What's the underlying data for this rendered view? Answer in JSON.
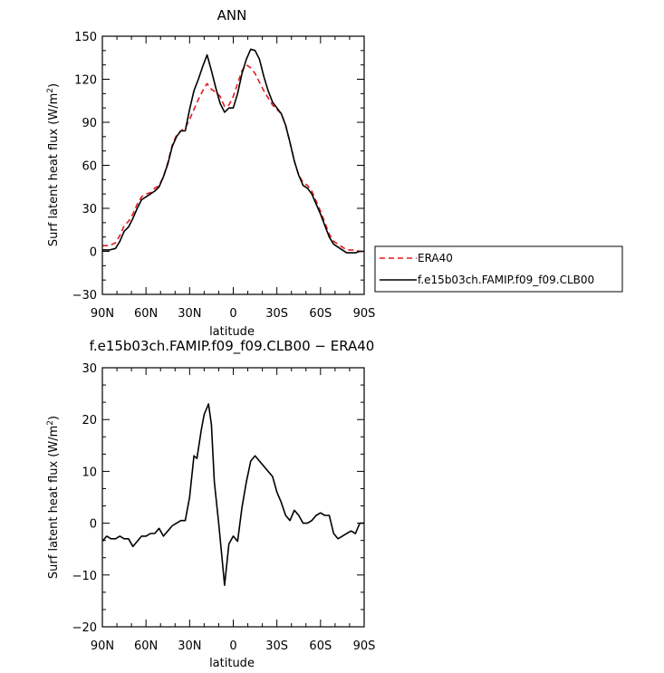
{
  "chart_data": [
    {
      "type": "line",
      "title": "ANN",
      "xlabel": "latitude",
      "ylabel": "Surf latent heat flux (W/m²)",
      "ylabel_parts": {
        "main": "Surf latent heat flux (W/m",
        "sup": "2",
        "close": ")"
      },
      "xlim": [
        90,
        -90
      ],
      "ylim": [
        -30,
        150
      ],
      "x_ticks": [
        90,
        60,
        30,
        0,
        -30,
        -60,
        -90
      ],
      "x_tick_labels": [
        "90N",
        "60N",
        "30N",
        "0",
        "30S",
        "60S",
        "90S"
      ],
      "y_ticks": [
        -30,
        0,
        30,
        60,
        90,
        120,
        150
      ],
      "y_tick_labels": [
        "−30",
        "0",
        "30",
        "60",
        "90",
        "120",
        "150"
      ],
      "legend": "right",
      "series": [
        {
          "name": "ERA40",
          "color": "#e41a1c",
          "dash": "dashed",
          "x": [
            90,
            85,
            81,
            78,
            75,
            72,
            69,
            66,
            63,
            60,
            57,
            54,
            51,
            48,
            45,
            42,
            39,
            36,
            33,
            30,
            27,
            24,
            21,
            18,
            15,
            12,
            9,
            6,
            3,
            0,
            -3,
            -6,
            -9,
            -12,
            -15,
            -18,
            -21,
            -24,
            -27,
            -30,
            -33,
            -36,
            -39,
            -42,
            -45,
            -48,
            -51,
            -54,
            -57,
            -60,
            -63,
            -66,
            -69,
            -72,
            -75,
            -78,
            -81,
            -84,
            -87,
            -90
          ],
          "y": [
            4,
            4,
            6,
            11,
            18,
            21,
            26,
            33,
            38,
            40,
            41,
            44,
            46,
            52,
            62,
            74,
            81,
            84,
            86,
            92,
            99,
            106,
            112,
            117,
            113,
            111,
            108,
            101,
            102,
            108,
            117,
            126,
            130,
            128,
            124,
            118,
            112,
            107,
            102,
            99,
            96,
            88,
            76,
            63,
            53,
            48,
            46,
            42,
            35,
            28,
            20,
            12,
            7,
            5,
            3,
            1,
            1,
            1,
            0,
            0
          ]
        },
        {
          "name": "f.e15b03ch.FAMIP.f09_f09.CLB00",
          "color": "#000000",
          "dash": "solid",
          "x": [
            90,
            85,
            81,
            78,
            75,
            72,
            69,
            66,
            63,
            60,
            57,
            54,
            51,
            48,
            45,
            42,
            39,
            36,
            33,
            30,
            27,
            24,
            21,
            18,
            15,
            12,
            9,
            6,
            3,
            0,
            -3,
            -6,
            -9,
            -12,
            -15,
            -18,
            -21,
            -24,
            -27,
            -30,
            -33,
            -36,
            -39,
            -42,
            -45,
            -48,
            -51,
            -54,
            -57,
            -60,
            -63,
            -66,
            -69,
            -72,
            -75,
            -78,
            -81,
            -84,
            -87,
            -90
          ],
          "y": [
            1,
            1,
            2,
            7,
            14,
            17,
            23,
            30,
            36,
            38,
            40,
            42,
            45,
            52,
            61,
            73,
            80,
            84,
            84,
            99,
            112,
            120,
            129,
            137,
            126,
            114,
            103,
            97,
            100,
            100,
            110,
            124,
            134,
            141,
            140,
            134,
            122,
            112,
            104,
            100,
            96,
            88,
            76,
            63,
            53,
            46,
            44,
            40,
            33,
            26,
            18,
            10,
            5,
            3,
            1,
            -1,
            -1,
            -1,
            0,
            0
          ]
        }
      ]
    },
    {
      "type": "line",
      "title": "f.e15b03ch.FAMIP.f09_f09.CLB00 − ERA40",
      "xlabel": "latitude",
      "ylabel": "Surf latent heat flux (W/m²)",
      "ylabel_parts": {
        "main": "Surf latent heat flux (W/m",
        "sup": "2",
        "close": ")"
      },
      "xlim": [
        90,
        -90
      ],
      "ylim": [
        -20,
        30
      ],
      "x_ticks": [
        90,
        60,
        30,
        0,
        -30,
        -60,
        -90
      ],
      "x_tick_labels": [
        "90N",
        "60N",
        "30N",
        "0",
        "30S",
        "60S",
        "90S"
      ],
      "y_ticks": [
        -20,
        -10,
        0,
        10,
        20,
        30
      ],
      "y_tick_labels": [
        "−20",
        "−10",
        "0",
        "10",
        "20",
        "30"
      ],
      "series": [
        {
          "color": "#000000",
          "dash": "solid",
          "x": [
            90,
            87,
            84,
            81,
            78,
            75,
            72,
            69,
            66,
            63,
            60,
            57,
            54,
            51,
            48,
            45,
            42,
            39,
            36,
            33,
            30,
            27,
            25,
            22,
            20,
            17,
            15,
            13,
            10,
            8,
            6,
            3,
            0,
            -3,
            -6,
            -9,
            -12,
            -15,
            -18,
            -21,
            -24,
            -27,
            -30,
            -33,
            -36,
            -39,
            -42,
            -45,
            -48,
            -51,
            -54,
            -57,
            -60,
            -63,
            -66,
            -69,
            -72,
            -75,
            -78,
            -81,
            -84,
            -87,
            -90
          ],
          "y": [
            -3.5,
            -2.5,
            -3,
            -3,
            -2.5,
            -3,
            -3,
            -4.5,
            -3.5,
            -2.5,
            -2.5,
            -2,
            -2,
            -1,
            -2.5,
            -1.5,
            -0.5,
            0,
            0.5,
            0.5,
            5,
            13,
            12.5,
            18,
            21,
            23,
            19,
            8,
            0,
            -6,
            -12,
            -4,
            -2.5,
            -3.5,
            3,
            8,
            12,
            13,
            12,
            11,
            10,
            9,
            6,
            4,
            1.5,
            0.5,
            2.5,
            1.5,
            0,
            0,
            0.5,
            1.5,
            2,
            1.5,
            1.5,
            -2,
            -3,
            -2.5,
            -2,
            -1.5,
            -2,
            0,
            0
          ]
        }
      ]
    }
  ]
}
